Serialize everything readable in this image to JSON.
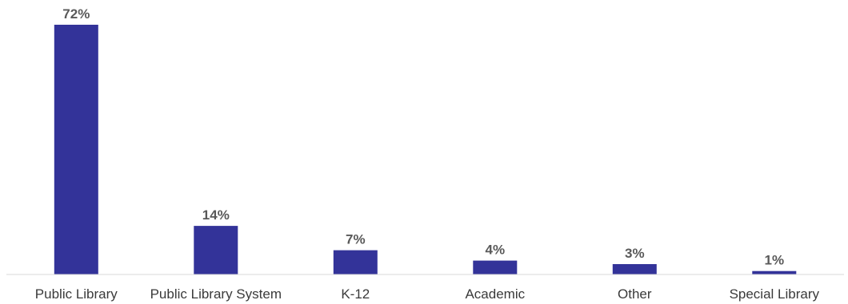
{
  "chart_data": {
    "type": "bar",
    "categories": [
      "Public Library",
      "Public Library System",
      "K-12",
      "Academic",
      "Other",
      "Special Library"
    ],
    "values": [
      72,
      14,
      7,
      4,
      3,
      1
    ],
    "data_labels": [
      "72%",
      "14%",
      "7%",
      "4%",
      "3%",
      "1%"
    ],
    "title": "",
    "xlabel": "",
    "ylabel": "",
    "ylim": [
      0,
      72
    ],
    "grid": false,
    "legend": "none",
    "bar_color": "#333399",
    "axis_color": "#d9d9d9"
  }
}
